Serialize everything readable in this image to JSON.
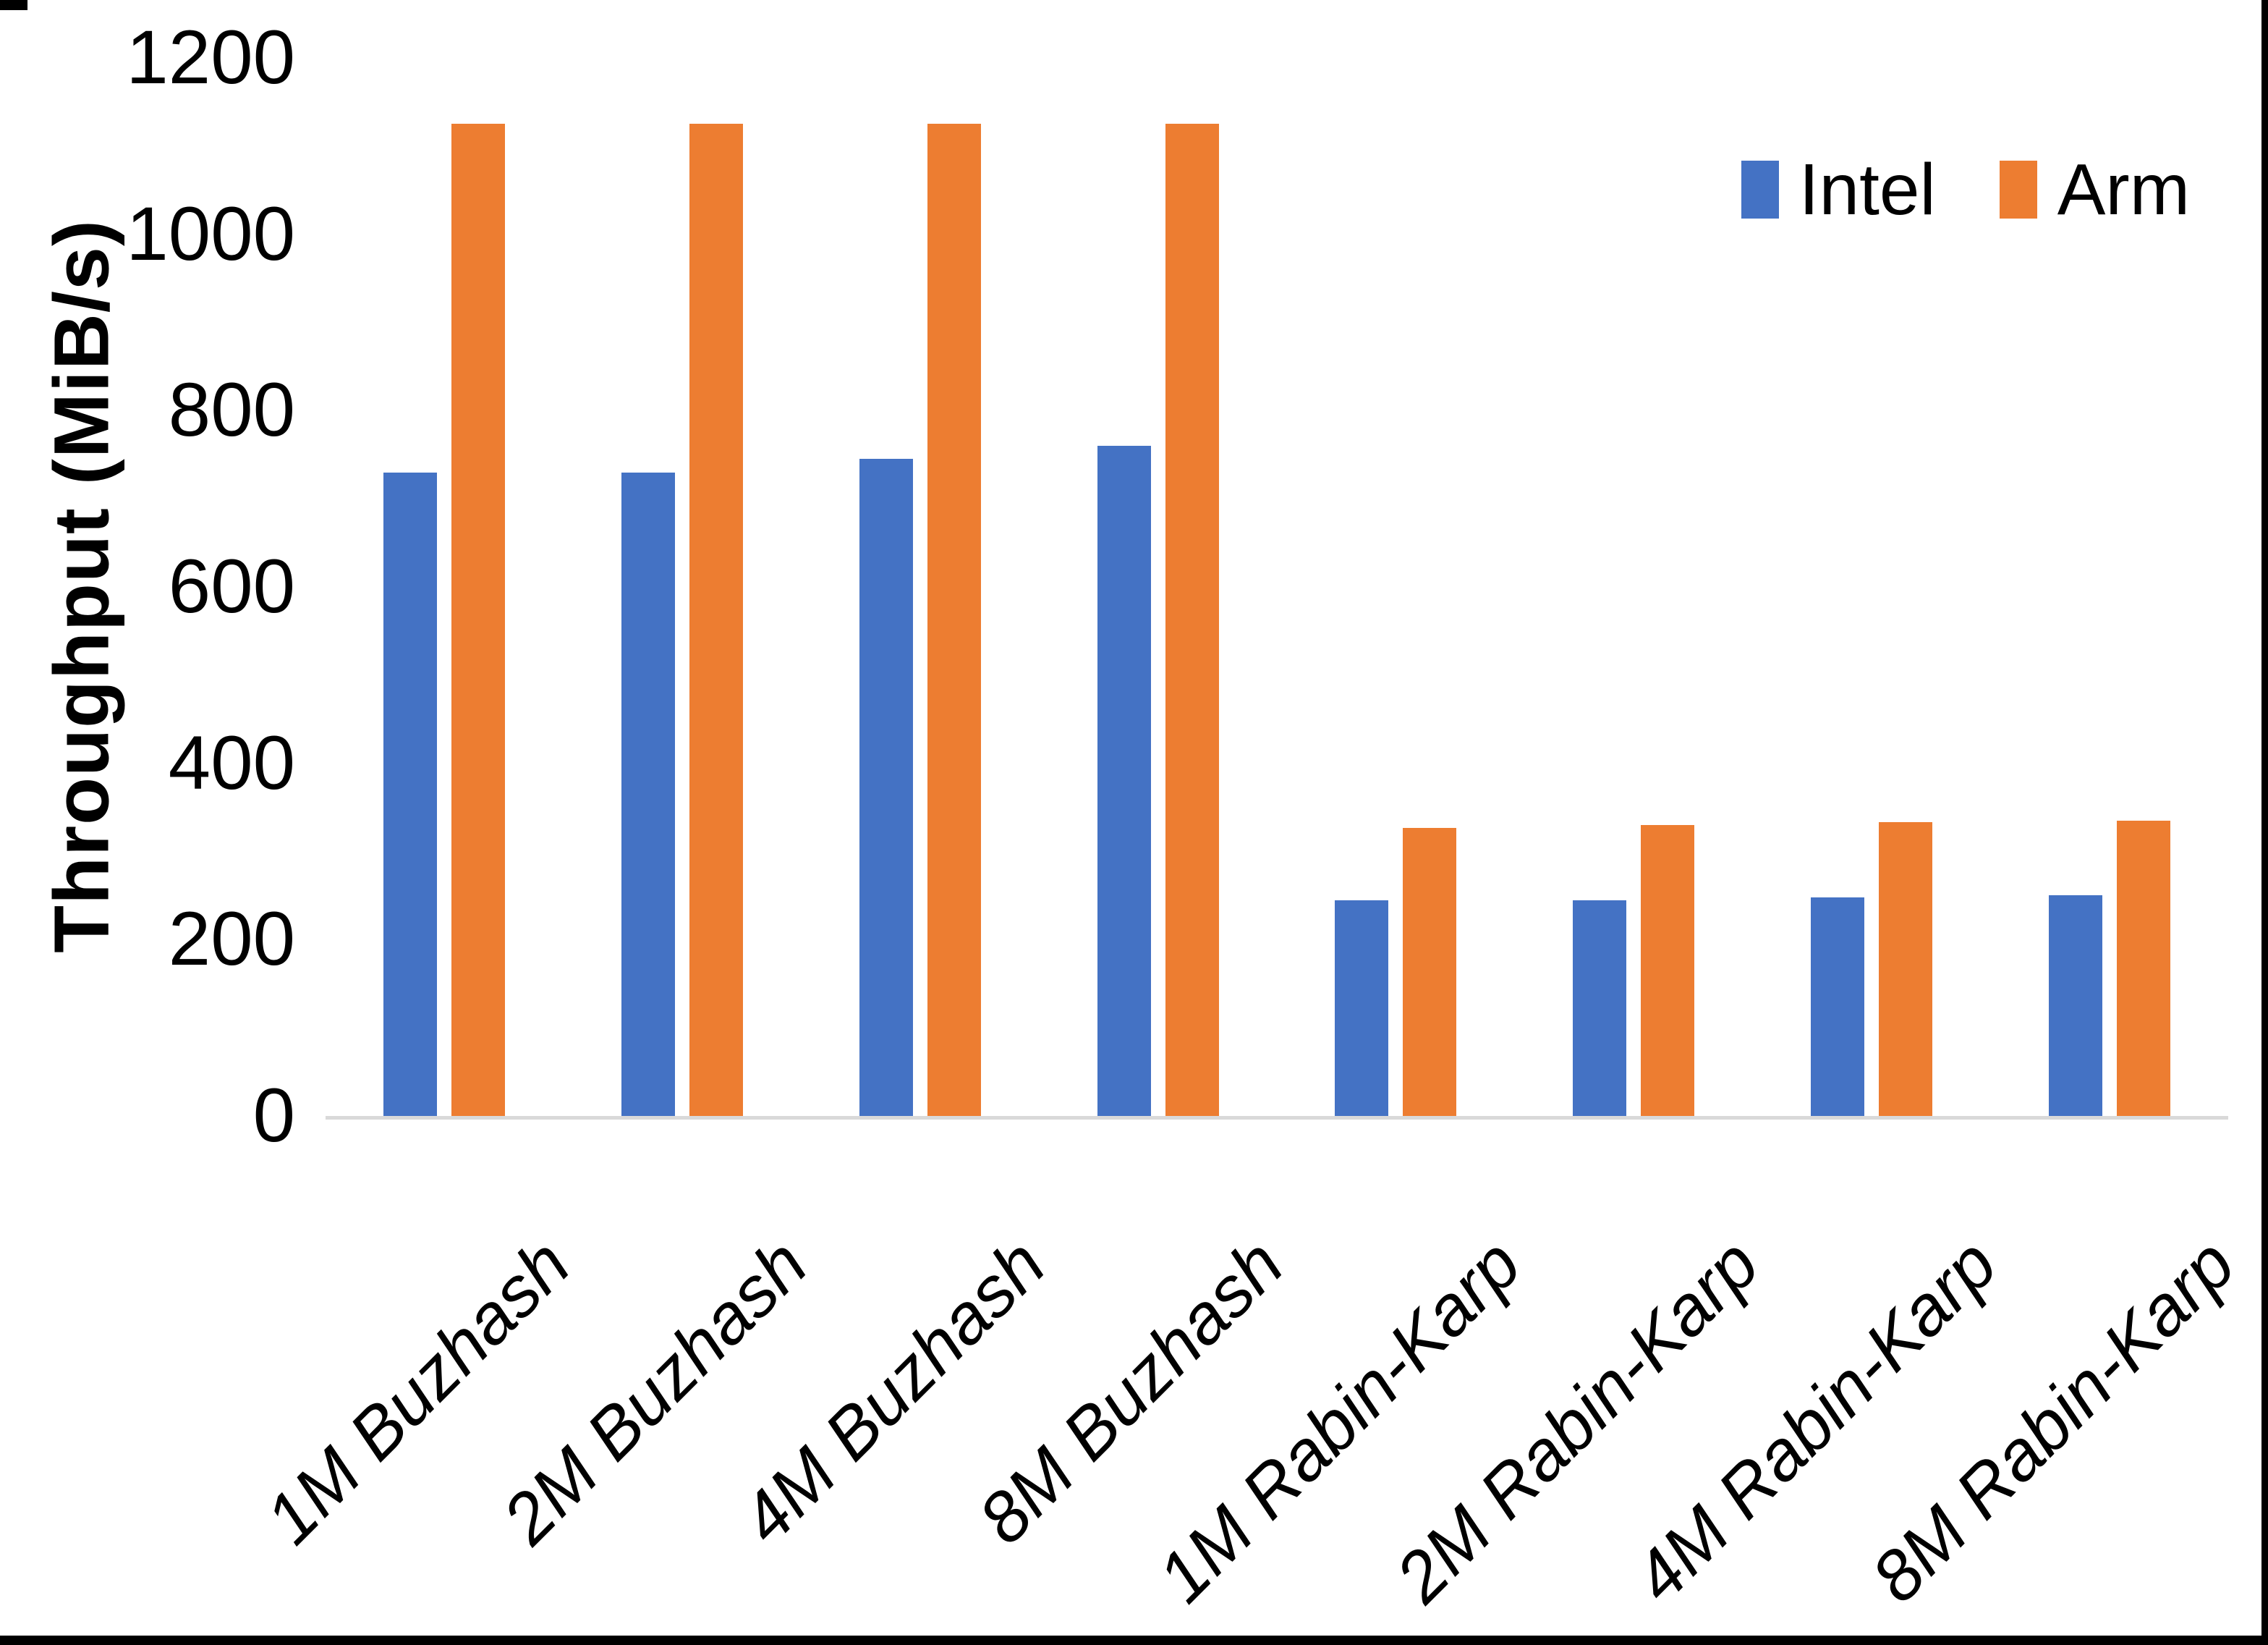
{
  "chart_data": {
    "type": "bar",
    "title": "",
    "xlabel": "",
    "ylabel": "Throughput (MiB/s)",
    "ylim": [
      0,
      1200
    ],
    "yticks": [
      0,
      200,
      400,
      600,
      800,
      1000,
      1200
    ],
    "grid": false,
    "legend_position": "top-right",
    "axis_line_color": "#d9d9d9",
    "frame_color": "#000000",
    "categories": [
      "1M Buzhash",
      "2M Buzhash",
      "4M Buzhash",
      "8M Buzhash",
      "1M Rabin-Karp",
      "2M Rabin-Karp",
      "4M Rabin-Karp",
      "8M Rabin-Karp"
    ],
    "series": [
      {
        "name": "Intel",
        "color": "#4472c4",
        "values": [
          730,
          730,
          745,
          760,
          245,
          245,
          248,
          250
        ]
      },
      {
        "name": "Arm",
        "color": "#ed7d31",
        "values": [
          1125,
          1125,
          1125,
          1125,
          327,
          330,
          333,
          335
        ]
      }
    ]
  }
}
